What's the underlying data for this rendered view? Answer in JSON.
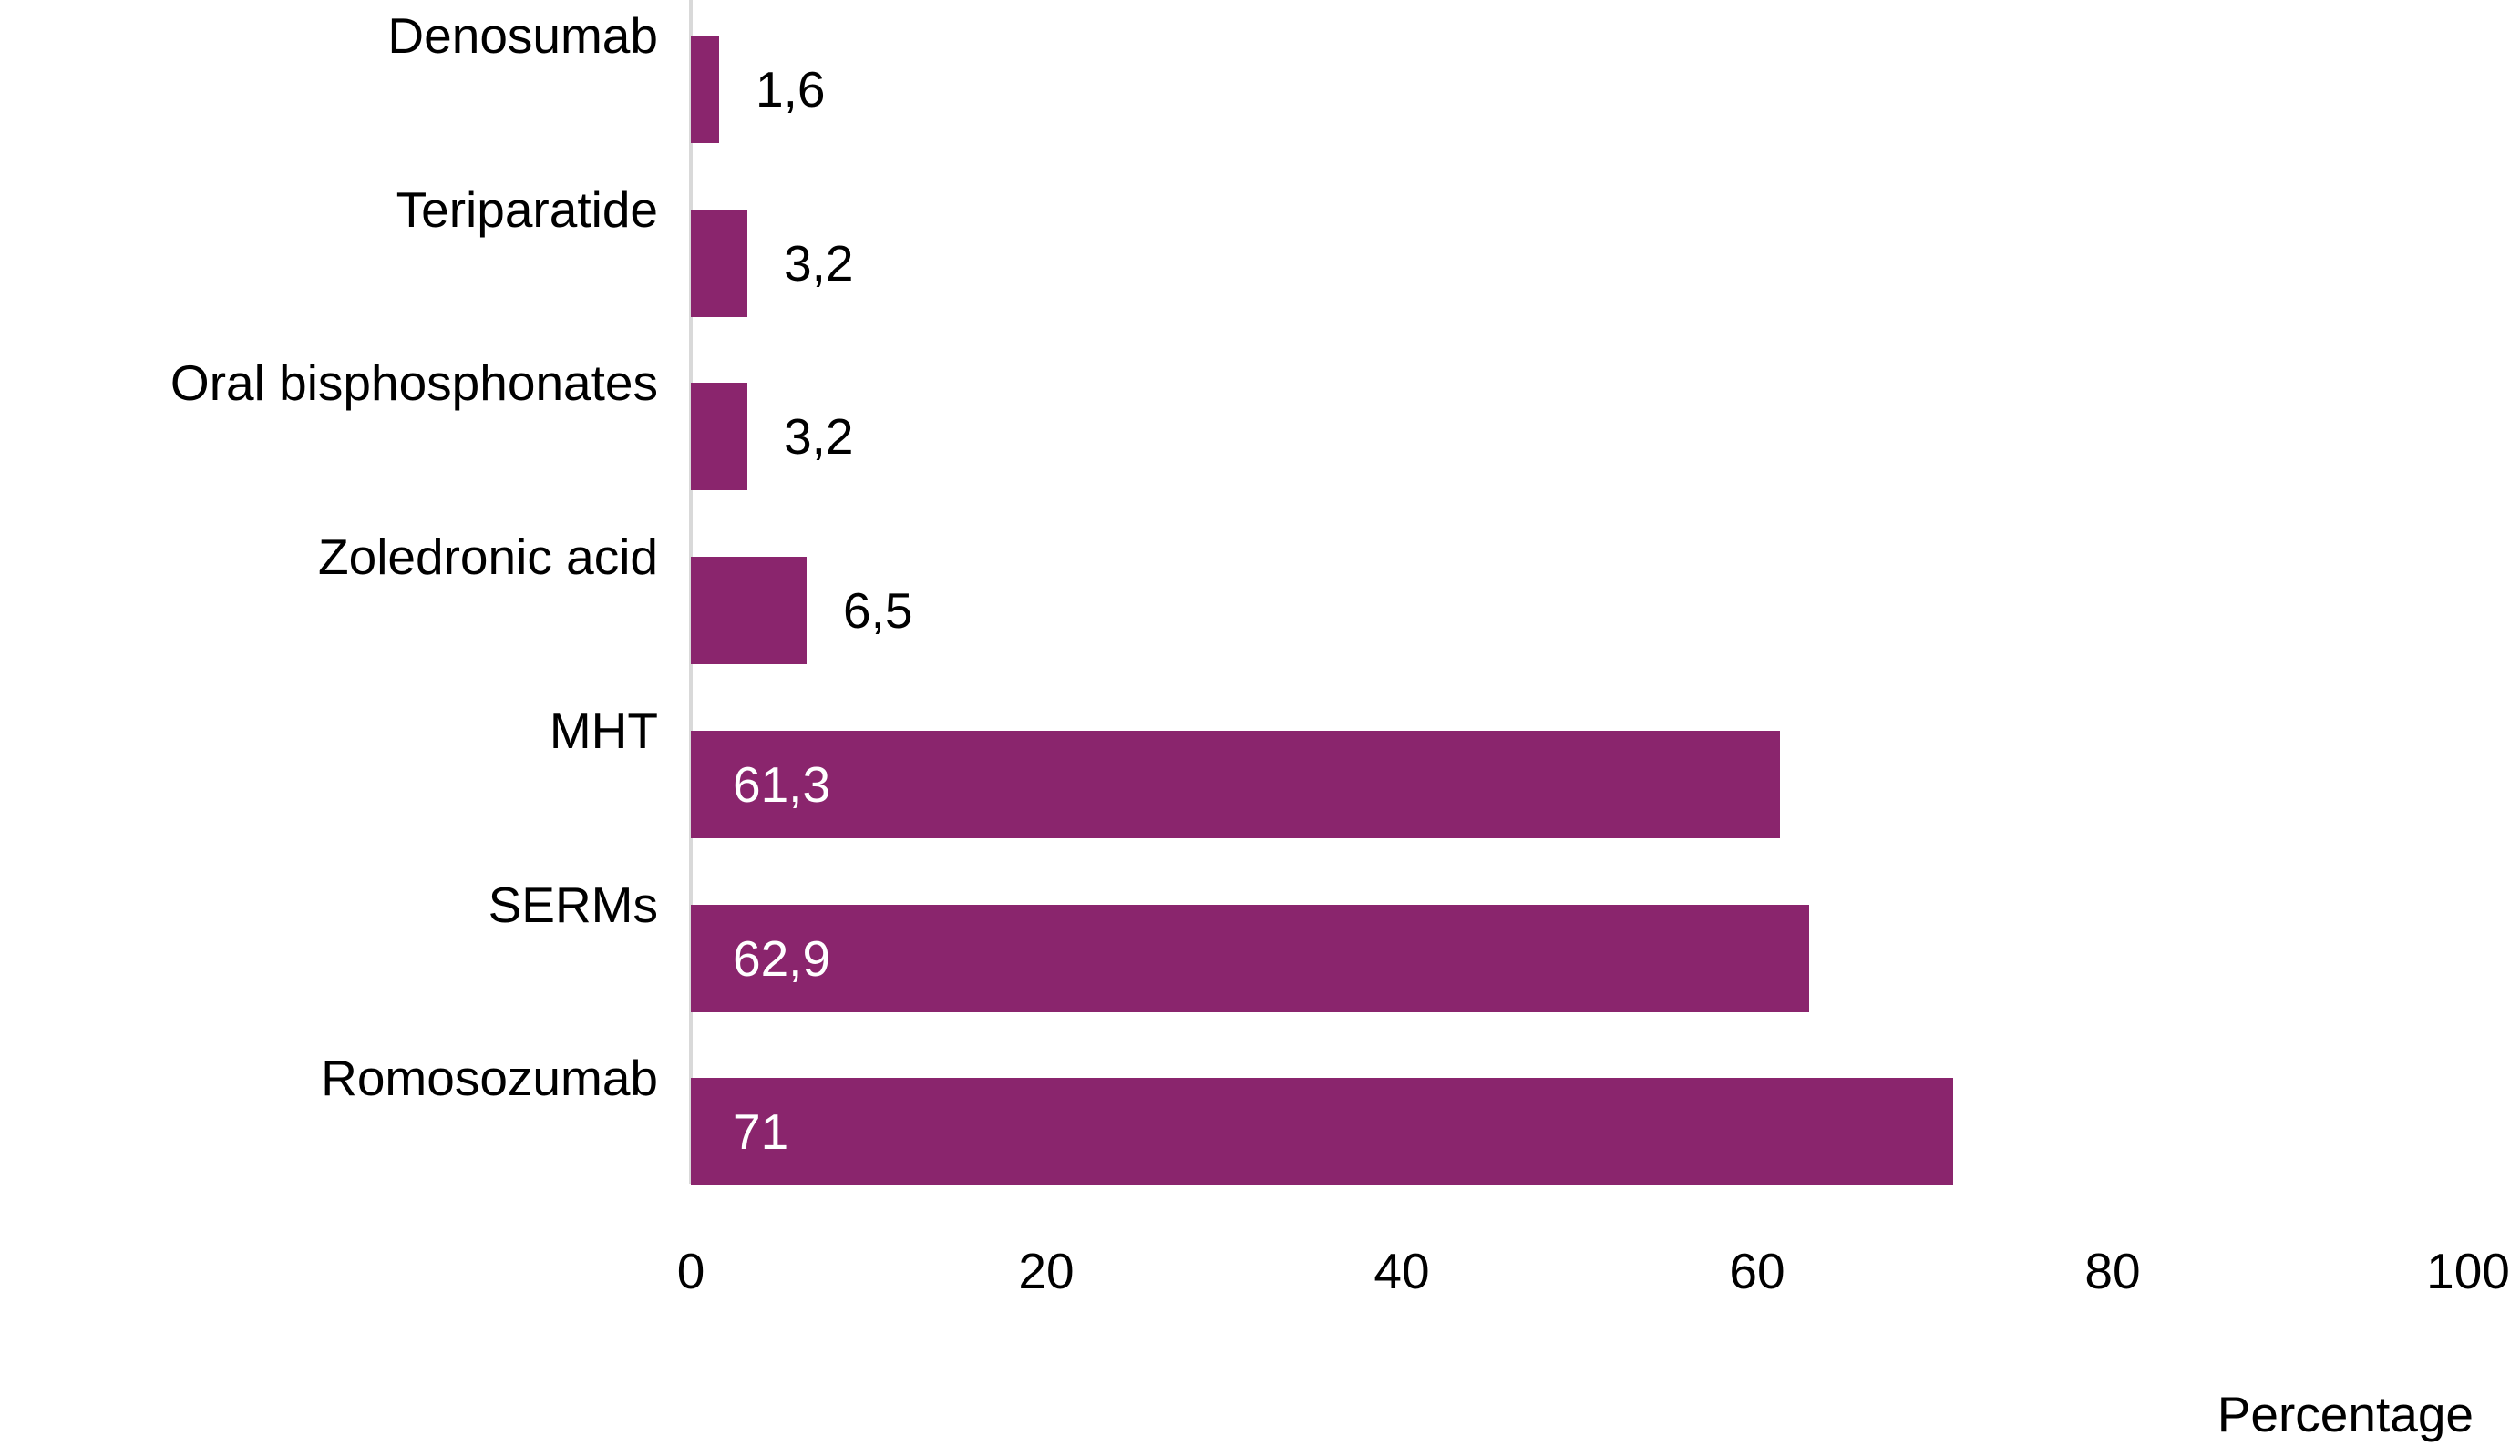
{
  "chart_data": {
    "type": "bar",
    "orientation": "horizontal",
    "title": "",
    "xlabel": "Percentage",
    "ylabel": "",
    "categories": [
      "Denosumab",
      "Teriparatide",
      "Oral bisphosphonates",
      "Zoledronic acid",
      "MHT",
      "SERMs",
      "Romosozumab"
    ],
    "values": [
      1.6,
      3.2,
      3.2,
      6.5,
      61.3,
      62.9,
      71
    ],
    "value_labels": [
      "1,6",
      "3,2",
      "3,2",
      "6,5",
      "61,3",
      "62,9",
      "71"
    ],
    "x_ticks": [
      0,
      20,
      40,
      60,
      80,
      100
    ],
    "x_tick_labels": [
      "0",
      "20",
      "40",
      "60",
      "80",
      "100"
    ],
    "xlim": [
      0,
      100
    ],
    "grid": false,
    "legend": false,
    "bar_color": "#8A256D",
    "axis_line_color": "#D9D9D9",
    "category_label_color": "#000000",
    "outside_value_label_color": "#000000",
    "inside_value_label_color": "#FFFFFF",
    "background_color": "#FFFFFF"
  }
}
